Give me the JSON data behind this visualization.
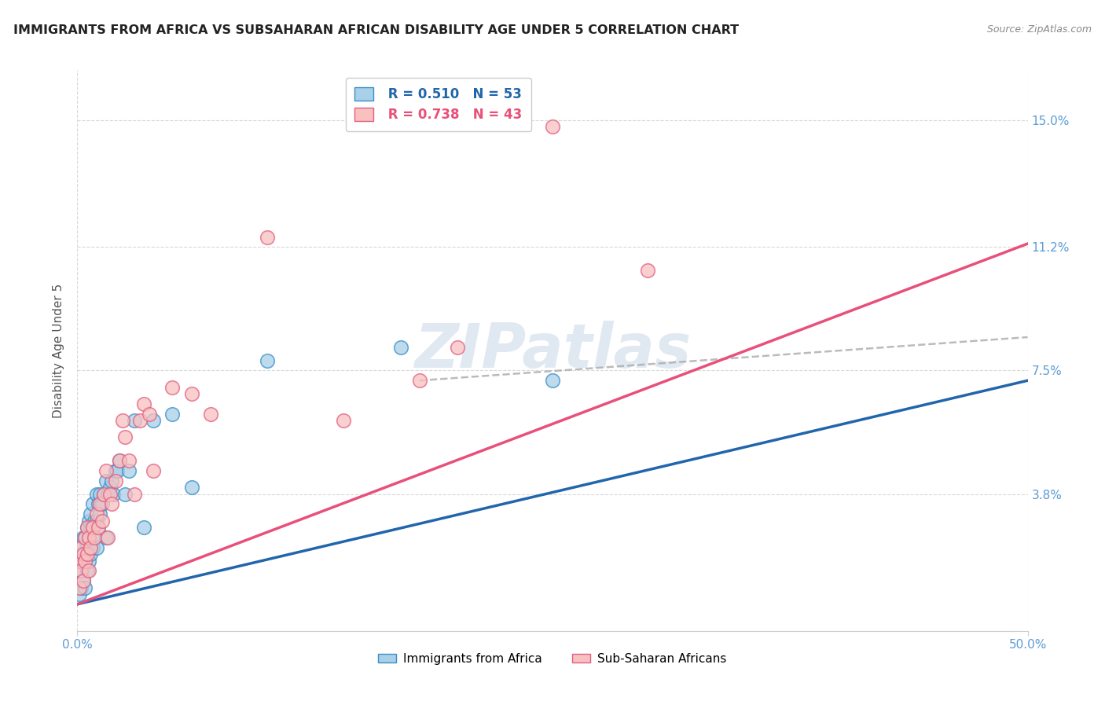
{
  "title": "IMMIGRANTS FROM AFRICA VS SUBSAHARAN AFRICAN DISABILITY AGE UNDER 5 CORRELATION CHART",
  "source": "Source: ZipAtlas.com",
  "ylabel": "Disability Age Under 5",
  "xlim": [
    0.0,
    0.5
  ],
  "ylim": [
    -0.003,
    0.165
  ],
  "xtick_positions": [
    0.0,
    0.5
  ],
  "xtick_labels": [
    "0.0%",
    "50.0%"
  ],
  "ytick_positions": [
    0.038,
    0.075,
    0.112,
    0.15
  ],
  "ytick_labels": [
    "3.8%",
    "7.5%",
    "11.2%",
    "15.0%"
  ],
  "R1": "0.510",
  "N1": "53",
  "R2": "0.738",
  "N2": "43",
  "legend1_label": "Immigrants from Africa",
  "legend2_label": "Sub-Saharan Africans",
  "blue_face": "#a8d0e8",
  "blue_edge": "#3a8ec8",
  "pink_face": "#f9c0c0",
  "pink_edge": "#e06080",
  "blue_line": "#2166ac",
  "pink_line": "#e8507a",
  "dashed_line": "#aaaaaa",
  "tick_color": "#5b9bd5",
  "grid_color": "#d8d8d8",
  "title_color": "#222222",
  "ylabel_color": "#555555",
  "watermark_text": "ZIPatlas",
  "blue_x": [
    0.001,
    0.001,
    0.002,
    0.002,
    0.002,
    0.003,
    0.003,
    0.003,
    0.004,
    0.004,
    0.004,
    0.005,
    0.005,
    0.005,
    0.006,
    0.006,
    0.006,
    0.007,
    0.007,
    0.007,
    0.008,
    0.008,
    0.008,
    0.009,
    0.009,
    0.01,
    0.01,
    0.01,
    0.011,
    0.011,
    0.012,
    0.012,
    0.013,
    0.014,
    0.015,
    0.015,
    0.016,
    0.017,
    0.018,
    0.019,
    0.02,
    0.021,
    0.022,
    0.025,
    0.027,
    0.03,
    0.035,
    0.04,
    0.05,
    0.06,
    0.1,
    0.17,
    0.25
  ],
  "blue_y": [
    0.008,
    0.015,
    0.01,
    0.018,
    0.022,
    0.012,
    0.02,
    0.025,
    0.01,
    0.018,
    0.025,
    0.015,
    0.022,
    0.028,
    0.018,
    0.025,
    0.03,
    0.02,
    0.028,
    0.032,
    0.022,
    0.028,
    0.035,
    0.025,
    0.03,
    0.022,
    0.03,
    0.038,
    0.028,
    0.035,
    0.032,
    0.038,
    0.035,
    0.038,
    0.025,
    0.042,
    0.038,
    0.04,
    0.042,
    0.038,
    0.045,
    0.045,
    0.048,
    0.038,
    0.045,
    0.06,
    0.028,
    0.06,
    0.062,
    0.04,
    0.078,
    0.082,
    0.072
  ],
  "pink_x": [
    0.001,
    0.001,
    0.002,
    0.002,
    0.003,
    0.003,
    0.004,
    0.004,
    0.005,
    0.005,
    0.006,
    0.006,
    0.007,
    0.008,
    0.009,
    0.01,
    0.011,
    0.012,
    0.013,
    0.014,
    0.015,
    0.016,
    0.017,
    0.018,
    0.02,
    0.022,
    0.024,
    0.025,
    0.027,
    0.03,
    0.033,
    0.035,
    0.038,
    0.04,
    0.05,
    0.06,
    0.07,
    0.1,
    0.14,
    0.18,
    0.2,
    0.25,
    0.3
  ],
  "pink_y": [
    0.01,
    0.018,
    0.015,
    0.022,
    0.012,
    0.02,
    0.018,
    0.025,
    0.02,
    0.028,
    0.015,
    0.025,
    0.022,
    0.028,
    0.025,
    0.032,
    0.028,
    0.035,
    0.03,
    0.038,
    0.045,
    0.025,
    0.038,
    0.035,
    0.042,
    0.048,
    0.06,
    0.055,
    0.048,
    0.038,
    0.06,
    0.065,
    0.062,
    0.045,
    0.07,
    0.068,
    0.062,
    0.115,
    0.06,
    0.072,
    0.082,
    0.148,
    0.105
  ],
  "blue_line_start_y": 0.005,
  "blue_line_end_y": 0.072,
  "pink_line_start_y": 0.005,
  "pink_line_end_y": 0.113,
  "dashed_line_start_x": 0.18,
  "dashed_line_start_y": 0.072,
  "dashed_line_end_x": 0.5,
  "dashed_line_end_y": 0.085
}
